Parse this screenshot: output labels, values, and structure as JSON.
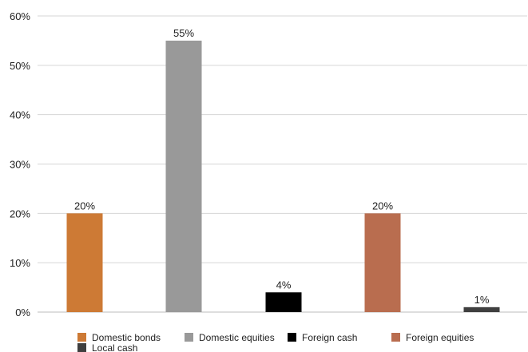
{
  "chart_data": {
    "type": "bar",
    "title": "",
    "xlabel": "",
    "ylabel": "",
    "categories": [
      "Domestic bonds",
      "Domestic equities",
      "Foreign cash",
      "Foreign equities",
      "Local cash"
    ],
    "values": [
      20,
      55,
      4,
      20,
      1
    ],
    "value_labels": [
      "20%",
      "55%",
      "4%",
      "20%",
      "1%"
    ],
    "colors": [
      "#cd7a35",
      "#999999",
      "#000000",
      "#b96d4f",
      "#3f3f3f"
    ],
    "ylim": [
      0,
      60
    ],
    "yticks": [
      0,
      10,
      20,
      30,
      40,
      50,
      60
    ],
    "ytick_labels": [
      "0%",
      "10%",
      "20%",
      "30%",
      "40%",
      "50%",
      "60%"
    ],
    "grid": true,
    "legend_position": "bottom",
    "legend": [
      "Domestic bonds",
      "Domestic equities",
      "Foreign cash",
      "Foreign equities",
      "Local cash"
    ]
  }
}
